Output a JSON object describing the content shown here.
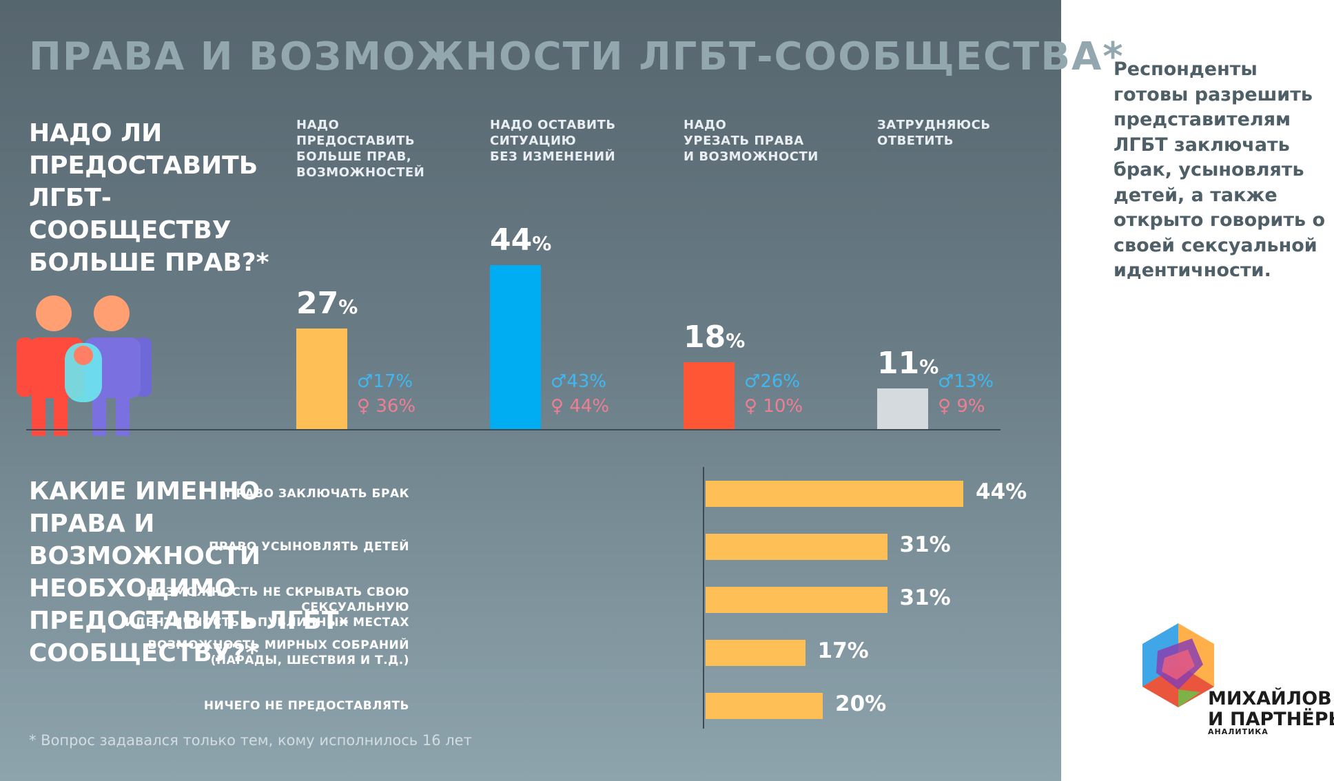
{
  "title": "ПРАВА И ВОЗМОЖНОСТИ ЛГБТ-СООБЩЕСТВА*",
  "question1": "НАДО ЛИ ПРЕДОСТАВИТЬ ЛГБТ-СООБЩЕСТВУ БОЛЬШЕ ПРАВ?*",
  "question2": "КАКИЕ ИМЕННО ПРАВА И ВОЗМОЖНОСТИ НЕОБХОДИМО ПРЕДОСТАВИТЬ ЛГБТ-СООБЩЕСТВУ?*",
  "footnote": "* Вопрос задавался только тем, кому исполнилось 16 лет",
  "sidebar_text": "Респонденты готовы разрешить представителям ЛГБТ заключать брак, усыновлять детей, а также открыто говорить о своей сексуальной идентичности.",
  "logo": {
    "line1": "МИХАЙЛОВ",
    "line2": "И ПАРТНЁРЫ",
    "subtitle": "АНАЛИТИКА"
  },
  "percent_sign": "%",
  "symbols": {
    "male": "♂",
    "female": "♀"
  },
  "colors": {
    "more": "#ffbf57",
    "same": "#00adf2",
    "less": "#ff5636",
    "unsure": "#d4dadd",
    "hbar": "#ffbf57",
    "male": "#3fb7f0",
    "female": "#f07e92"
  },
  "chart_data": [
    {
      "type": "bar",
      "title": "НАДО ЛИ ПРЕДОСТАВИТЬ ЛГБТ-СООБЩЕСТВУ БОЛЬШЕ ПРАВ?*",
      "categories": [
        "НАДО ПРЕДОСТАВИТЬ БОЛЬШЕ ПРАВ, ВОЗМОЖНОСТЕЙ",
        "НАДО ОСТАВИТЬ СИТУАЦИЮ БЕЗ ИЗМЕНЕНИЙ",
        "НАДО УРЕЗАТЬ ПРАВА И ВОЗМОЖНОСТИ",
        "ЗАТРУДНЯЮСЬ ОТВЕТИТЬ"
      ],
      "header_lines": [
        [
          "НАДО",
          "ПРЕДОСТАВИТЬ",
          "БОЛЬШЕ ПРАВ,",
          "ВОЗМОЖНОСТЕЙ"
        ],
        [
          "НАДО ОСТАВИТЬ",
          "СИТУАЦИЮ",
          "БЕЗ ИЗМЕНЕНИЙ"
        ],
        [
          "НАДО",
          "УРЕЗАТЬ ПРАВА",
          "И ВОЗМОЖНОСТИ"
        ],
        [
          "ЗАТРУДНЯЮСЬ",
          "ОТВЕТИТЬ"
        ]
      ],
      "values": [
        27,
        44,
        18,
        11
      ],
      "male": [
        17,
        43,
        26,
        13
      ],
      "female": [
        36,
        44,
        10,
        9
      ],
      "unit": "%",
      "ylim": [
        0,
        50
      ]
    },
    {
      "type": "bar",
      "orientation": "horizontal",
      "title": "КАКИЕ ИМЕННО ПРАВА И ВОЗМОЖНОСТИ НЕОБХОДИМО ПРЕДОСТАВИТЬ ЛГБТ-СООБЩЕСТВУ?*",
      "categories": [
        [
          "ПРАВО ЗАКЛЮЧАТЬ БРАК"
        ],
        [
          "ПРАВО УСЫНОВЛЯТЬ ДЕТЕЙ"
        ],
        [
          "ВОЗМОЖНОСТЬ НЕ СКРЫВАТЬ СВОЮ СЕКСУАЛЬНУЮ",
          "ИДЕНТИЧНОСТЬ В ПУБЛИЧНЫХ МЕСТАХ"
        ],
        [
          "ВОЗМОЖНОСТЬ МИРНЫХ СОБРАНИЙ",
          "(ПАРАДЫ, ШЕСТВИЯ И Т.Д.)"
        ],
        [
          "НИЧЕГО НЕ ПРЕДОСТАВЛЯТЬ"
        ]
      ],
      "values": [
        44,
        31,
        31,
        17,
        20
      ],
      "unit": "%",
      "xlim": [
        0,
        44
      ]
    }
  ]
}
